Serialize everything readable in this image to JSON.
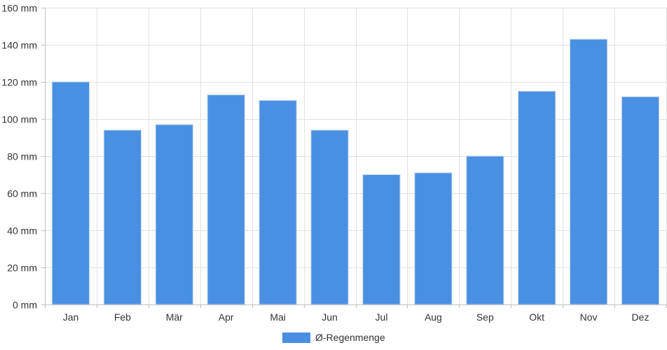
{
  "chart_data": {
    "type": "bar",
    "categories": [
      "Jan",
      "Feb",
      "Mär",
      "Apr",
      "Mai",
      "Jun",
      "Jul",
      "Aug",
      "Sep",
      "Okt",
      "Nov",
      "Dez"
    ],
    "series": [
      {
        "name": "Ø-Regenmenge",
        "values": [
          120,
          94,
          97,
          113,
          110,
          94,
          70,
          71,
          80,
          115,
          143,
          112
        ]
      }
    ],
    "y_ticks": [
      "0 mm",
      "20 mm",
      "40 mm",
      "60 mm",
      "80 mm",
      "100 mm",
      "120 mm",
      "140 mm",
      "160 mm"
    ],
    "ylim": [
      0,
      160
    ],
    "ytick_step": 20,
    "grid": true,
    "legend_position": "bottom",
    "colors": {
      "bar": "#4a90e2",
      "bar_border": "#c7d8ec",
      "grid": "#e1e1e1",
      "axis": "#bfbfbf"
    }
  }
}
